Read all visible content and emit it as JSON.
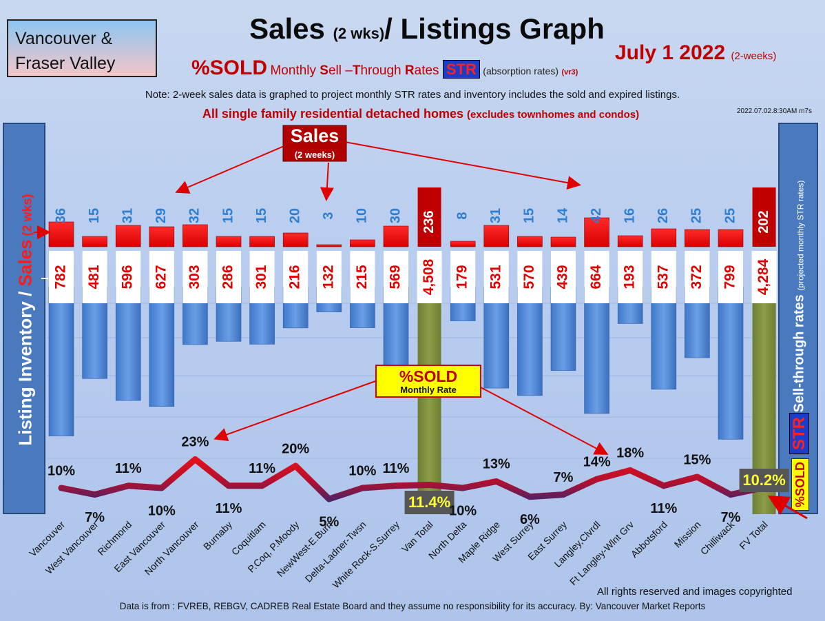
{
  "region_box": {
    "line1": "Vancouver &",
    "line2": "Fraser Valley"
  },
  "title": {
    "main": "Sales",
    "small": "(2 wks)",
    "rest": "/ Listings Graph"
  },
  "date": {
    "main": "July 1  2022",
    "sub": "(2-weeks)"
  },
  "subtitle": {
    "sold": "%SOLD",
    "parts": [
      "Monthly ",
      "S",
      "ell –",
      "T",
      "hrough ",
      "R",
      "ates "
    ],
    "str": "STR",
    "absorption": "(absorption rates)",
    "version": "(vr3)"
  },
  "note": "Note: 2-week sales data is graphed to project monthly STR rates and inventory includes the sold and expired listings.",
  "scope": {
    "main": "All single family residential detached homes",
    "small": "(excludes townhomes and condos)"
  },
  "stamp": "2022.07.02.8:30AM m7s",
  "left_axis": {
    "inventory": "Listing Inventory / ",
    "sales": "Sales",
    "small": " (2  wks)"
  },
  "right_axis": {
    "label": "Sell-through rates ",
    "small": "(projected monthly STR rates)",
    "sold": "%SOLD",
    "str": "STR"
  },
  "callouts": {
    "sales_title": "Sales",
    "sales_sub": "(2 weeks)",
    "sold_title": "%SOLD",
    "sold_sub": "Monthly Rate"
  },
  "copyright": "All rights reserved and  images copyrighted",
  "source": "Data is from : FVREB, REBGV, CADREB Real Estate Board and they assume no responsibility for its accuracy. By: Vancouver Market Reports",
  "colors": {
    "sales_bar": "#ff0000",
    "total_sales_bar": "#c00000",
    "inventory_bar": "#4a86d8",
    "total_inventory_bar": "#7a8c3a",
    "sales_label": "#2f7fd0",
    "inventory_label": "#e00000",
    "title_red": "#c00000"
  },
  "chart_data": {
    "type": "bar",
    "categories": [
      "Vancouver",
      "West Vancouver",
      "Richmond",
      "East Vancouver",
      "North Vancouver",
      "Burnaby",
      "Coquitlam",
      "P.Coq, P.Moody",
      "NewWest-E.Burn",
      "Delta-Ladner-Twsn",
      "White Rock-S.Surrey",
      "Van Total",
      "North Delta",
      "Maple Ridge",
      "West Surrey",
      "East Surrey",
      "Langley,Clvrdl",
      "Ft Langley-Wlnt Grv",
      "Abbotsford",
      "Mission",
      "Chilliwack",
      "FV Total"
    ],
    "series": [
      {
        "name": "Sales",
        "values": [
          36,
          15,
          31,
          29,
          32,
          15,
          15,
          20,
          3,
          10,
          30,
          236,
          8,
          31,
          15,
          14,
          42,
          16,
          26,
          25,
          25,
          202
        ]
      },
      {
        "name": "Listing Inventory",
        "values": [
          782,
          481,
          596,
          627,
          303,
          286,
          301,
          216,
          132,
          215,
          569,
          4508,
          179,
          531,
          570,
          439,
          664,
          193,
          537,
          372,
          799,
          4284
        ]
      },
      {
        "name": "%SOLD",
        "values": [
          10,
          7,
          11,
          10,
          23,
          11,
          11,
          20,
          5,
          10,
          11,
          11.4,
          10,
          13,
          6,
          7,
          14,
          18,
          11,
          15,
          7,
          10.2
        ]
      }
    ],
    "sales_labels": [
      "36",
      "15",
      "31",
      "29",
      "32",
      "15",
      "15",
      "20",
      "3",
      "10",
      "30",
      "236",
      "8",
      "31",
      "15",
      "14",
      "42",
      "16",
      "26",
      "25",
      "25",
      "202"
    ],
    "inventory_labels": [
      "782",
      "481",
      "596",
      "627",
      "303",
      "286",
      "301",
      "216",
      "132",
      "215",
      "569",
      "4,508",
      "179",
      "531",
      "570",
      "439",
      "664",
      "193",
      "537",
      "372",
      "799",
      "4,284"
    ],
    "str_labels": [
      "10%",
      "7%",
      "11%",
      "10%",
      "23%",
      "11%",
      "11%",
      "20%",
      "5%",
      "10%",
      "11%",
      "11.4%",
      "10%",
      "13%",
      "6%",
      "7%",
      "14%",
      "18%",
      "11%",
      "15%",
      "7%",
      "10.2%"
    ],
    "total_indices": [
      11,
      21
    ],
    "xlabel": "",
    "ylabel": "Listing Inventory / Sales (2  wks)",
    "y2label": "Sell-through rates (projected monthly STR rates)",
    "grid": true
  }
}
